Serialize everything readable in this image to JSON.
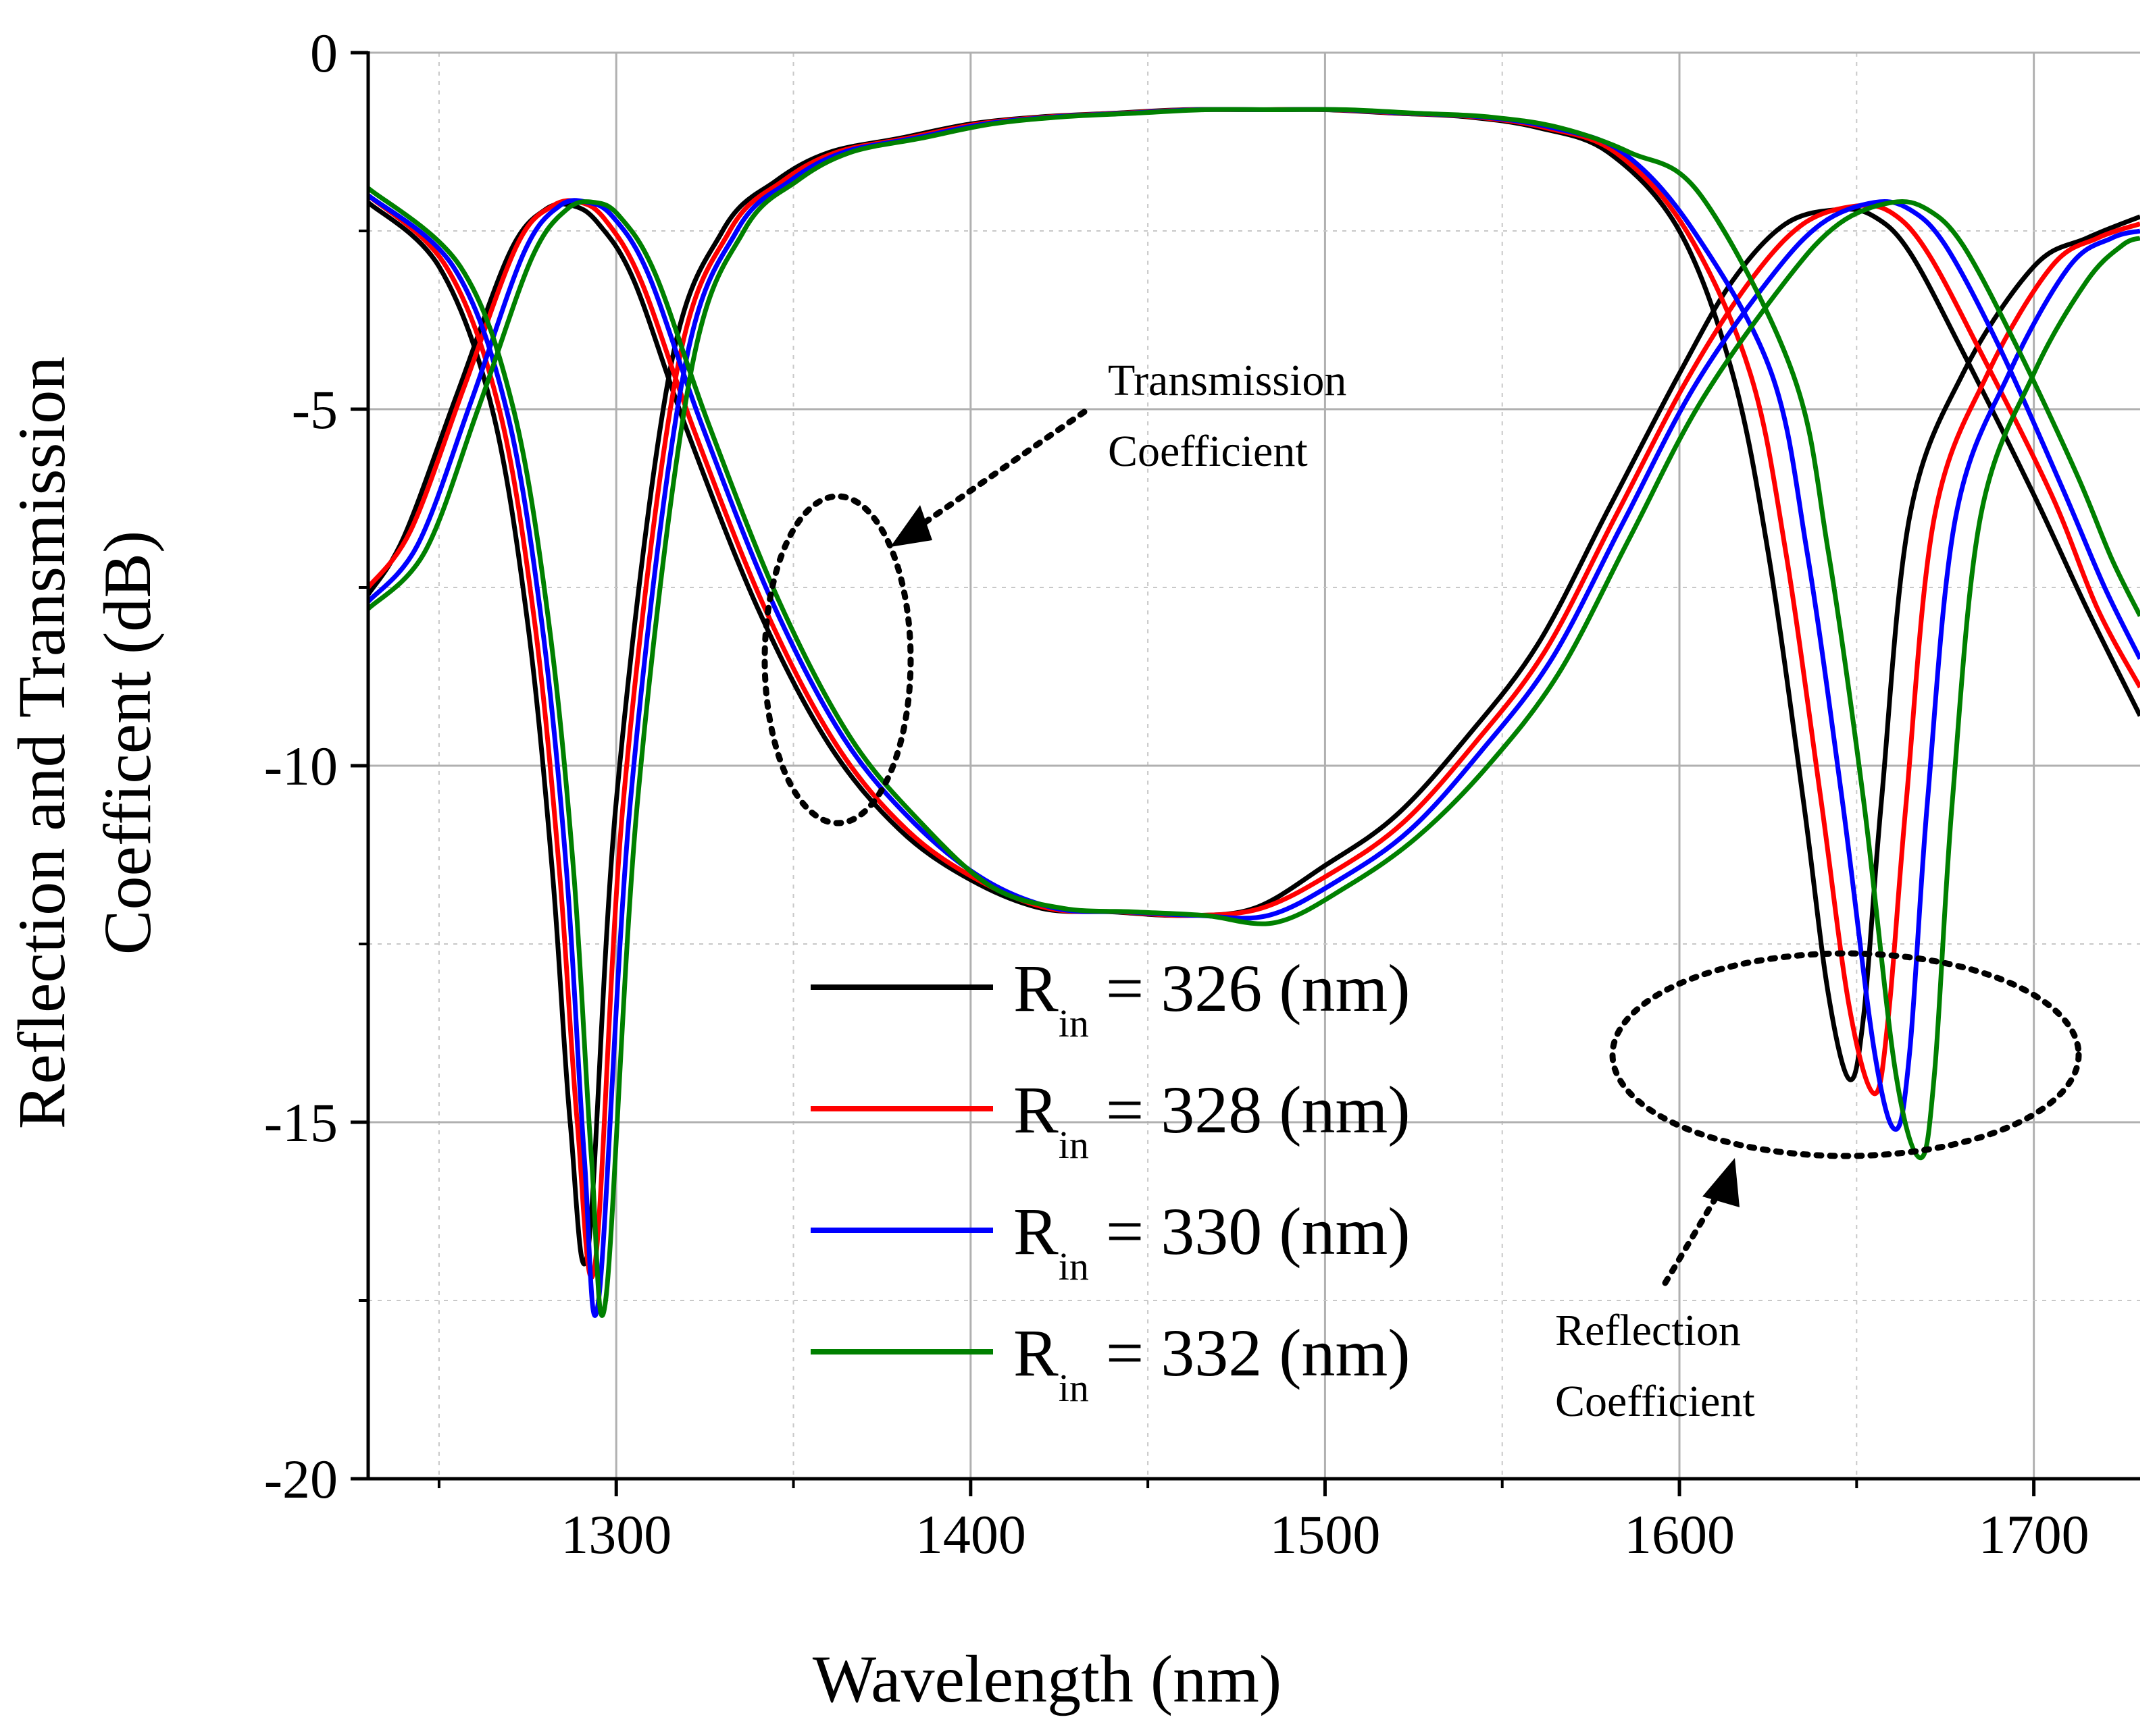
{
  "chart_data": {
    "type": "line",
    "xlabel": "Wavelength (nm)",
    "ylabel_line1": "Reflection and Transmission",
    "ylabel_line2": "Coefficent (dB)",
    "xlim": [
      1230,
      1730
    ],
    "ylim": [
      -20,
      0
    ],
    "xticks": [
      1300,
      1400,
      1500,
      1600,
      1700
    ],
    "xtick_labels": [
      "1300",
      "1400",
      "1500",
      "1600",
      "1700"
    ],
    "xminor": [
      1250,
      1350,
      1450,
      1550,
      1650
    ],
    "yticks": [
      0,
      -5,
      -10,
      -15,
      -20
    ],
    "ytick_labels": [
      "0",
      "-5",
      "-10",
      "-15",
      "-20"
    ],
    "yminor": [
      -2.5,
      -7.5,
      -12.5,
      -17.5
    ],
    "grid": true,
    "legend_placement": "bottom-center",
    "series": [
      {
        "name": "R_in = 326 (nm)",
        "legend_main": "R",
        "legend_sub": "in",
        "legend_rest": " = 326 (nm)",
        "color": "#000000",
        "reflection": {
          "x": [
            1230,
            1250,
            1265,
            1275,
            1282,
            1287,
            1292,
            1300,
            1315,
            1330,
            1345,
            1360,
            1380,
            1400,
            1420,
            1440,
            1460,
            1480,
            1500,
            1520,
            1540,
            1560,
            1580,
            1600,
            1615,
            1625,
            1635,
            1642,
            1648,
            1652,
            1657,
            1665,
            1680,
            1700,
            1715,
            1730
          ],
          "y": [
            -2.1,
            -3.0,
            -5.0,
            -8.0,
            -11.5,
            -15.0,
            -16.8,
            -10.5,
            -4.5,
            -2.5,
            -1.8,
            -1.4,
            -1.2,
            -1.0,
            -0.9,
            -0.85,
            -0.8,
            -0.8,
            -0.8,
            -0.85,
            -0.9,
            -1.05,
            -1.4,
            -2.5,
            -4.5,
            -7.0,
            -10.5,
            -13.2,
            -14.4,
            -13.5,
            -10.5,
            -6.5,
            -4.5,
            -3.0,
            -2.6,
            -2.3
          ]
        },
        "transmission": {
          "x": [
            1230,
            1240,
            1255,
            1270,
            1280,
            1288,
            1295,
            1305,
            1320,
            1340,
            1360,
            1380,
            1400,
            1420,
            1440,
            1460,
            1480,
            1500,
            1520,
            1540,
            1560,
            1580,
            1600,
            1615,
            1630,
            1645,
            1655,
            1665,
            1680,
            1700,
            1715,
            1730
          ],
          "y": [
            -7.6,
            -6.8,
            -4.8,
            -2.8,
            -2.2,
            -2.15,
            -2.4,
            -3.2,
            -5.3,
            -7.8,
            -9.7,
            -10.9,
            -11.6,
            -12.0,
            -12.05,
            -12.1,
            -12.0,
            -11.4,
            -10.7,
            -9.6,
            -8.3,
            -6.4,
            -4.5,
            -3.2,
            -2.4,
            -2.2,
            -2.3,
            -2.8,
            -4.2,
            -6.2,
            -7.8,
            -9.3
          ]
        }
      },
      {
        "name": "R_in = 328 (nm)",
        "legend_main": "R",
        "legend_sub": "in",
        "legend_rest": " = 328 (nm)",
        "color": "#ff0000",
        "reflection": {
          "x": [
            1230,
            1252,
            1267,
            1277,
            1284,
            1289,
            1294,
            1302,
            1317,
            1332,
            1347,
            1362,
            1382,
            1402,
            1422,
            1442,
            1462,
            1482,
            1502,
            1522,
            1542,
            1562,
            1582,
            1602,
            1620,
            1630,
            1640,
            1648,
            1655,
            1659,
            1664,
            1672,
            1687,
            1705,
            1718,
            1730
          ],
          "y": [
            -2.0,
            -3.0,
            -5.0,
            -8.0,
            -11.5,
            -15.0,
            -17.0,
            -10.5,
            -4.5,
            -2.5,
            -1.8,
            -1.4,
            -1.2,
            -1.0,
            -0.9,
            -0.85,
            -0.8,
            -0.8,
            -0.8,
            -0.85,
            -0.9,
            -1.05,
            -1.4,
            -2.5,
            -4.5,
            -7.0,
            -10.5,
            -13.4,
            -14.6,
            -13.5,
            -10.5,
            -6.5,
            -4.5,
            -3.0,
            -2.6,
            -2.4
          ]
        },
        "transmission": {
          "x": [
            1230,
            1242,
            1257,
            1272,
            1282,
            1290,
            1297,
            1307,
            1322,
            1342,
            1362,
            1382,
            1402,
            1422,
            1442,
            1462,
            1482,
            1502,
            1522,
            1542,
            1562,
            1582,
            1602,
            1620,
            1635,
            1650,
            1660,
            1670,
            1685,
            1705,
            1718,
            1730
          ],
          "y": [
            -7.5,
            -6.7,
            -4.7,
            -2.7,
            -2.15,
            -2.1,
            -2.35,
            -3.2,
            -5.3,
            -7.8,
            -9.7,
            -10.9,
            -11.6,
            -12.0,
            -12.05,
            -12.1,
            -12.0,
            -11.5,
            -10.8,
            -9.7,
            -8.4,
            -6.5,
            -4.6,
            -3.2,
            -2.4,
            -2.15,
            -2.25,
            -2.8,
            -4.2,
            -6.2,
            -7.8,
            -8.9
          ]
        }
      },
      {
        "name": "R_in = 330 (nm)",
        "legend_main": "R",
        "legend_sub": "in",
        "legend_rest": " = 330 (nm)",
        "color": "#0000ff",
        "reflection": {
          "x": [
            1230,
            1254,
            1269,
            1279,
            1286,
            1291,
            1295,
            1304,
            1319,
            1334,
            1349,
            1364,
            1384,
            1404,
            1424,
            1444,
            1464,
            1484,
            1504,
            1524,
            1544,
            1564,
            1584,
            1604,
            1626,
            1636,
            1646,
            1655,
            1661,
            1665,
            1670,
            1678,
            1693,
            1710,
            1722,
            1730
          ],
          "y": [
            -2.0,
            -3.0,
            -5.0,
            -8.0,
            -11.5,
            -15.5,
            -17.5,
            -10.5,
            -4.5,
            -2.5,
            -1.8,
            -1.4,
            -1.2,
            -1.0,
            -0.9,
            -0.85,
            -0.8,
            -0.8,
            -0.8,
            -0.85,
            -0.9,
            -1.05,
            -1.4,
            -2.5,
            -4.5,
            -7.0,
            -10.5,
            -14.0,
            -15.1,
            -14.0,
            -10.5,
            -6.5,
            -4.5,
            -3.0,
            -2.6,
            -2.5
          ]
        },
        "transmission": {
          "x": [
            1230,
            1244,
            1259,
            1274,
            1284,
            1292,
            1299,
            1309,
            1324,
            1344,
            1364,
            1384,
            1404,
            1424,
            1444,
            1464,
            1484,
            1504,
            1524,
            1544,
            1564,
            1584,
            1604,
            1625,
            1640,
            1655,
            1665,
            1675,
            1690,
            1708,
            1720,
            1730
          ],
          "y": [
            -7.7,
            -6.9,
            -4.9,
            -2.8,
            -2.15,
            -2.1,
            -2.3,
            -3.1,
            -5.2,
            -7.7,
            -9.6,
            -10.8,
            -11.6,
            -12.0,
            -12.05,
            -12.1,
            -12.1,
            -11.6,
            -10.9,
            -9.8,
            -8.5,
            -6.6,
            -4.7,
            -3.2,
            -2.4,
            -2.1,
            -2.2,
            -2.7,
            -4.1,
            -6.1,
            -7.5,
            -8.5
          ]
        }
      },
      {
        "name": "R_in = 332 (nm)",
        "legend_main": "R",
        "legend_sub": "in",
        "legend_rest": " = 332 (nm)",
        "color": "#008000",
        "reflection": {
          "x": [
            1230,
            1256,
            1271,
            1281,
            1288,
            1293,
            1297,
            1306,
            1321,
            1336,
            1351,
            1366,
            1386,
            1406,
            1426,
            1446,
            1466,
            1486,
            1506,
            1526,
            1546,
            1566,
            1586,
            1606,
            1632,
            1642,
            1652,
            1661,
            1668,
            1672,
            1677,
            1685,
            1700,
            1715,
            1725,
            1730
          ],
          "y": [
            -1.9,
            -3.0,
            -5.0,
            -8.0,
            -11.5,
            -15.5,
            -17.5,
            -10.5,
            -4.5,
            -2.5,
            -1.8,
            -1.4,
            -1.2,
            -1.0,
            -0.9,
            -0.85,
            -0.8,
            -0.8,
            -0.8,
            -0.85,
            -0.9,
            -1.05,
            -1.4,
            -2.0,
            -4.5,
            -7.0,
            -10.5,
            -14.3,
            -15.5,
            -14.3,
            -10.5,
            -6.5,
            -4.5,
            -3.2,
            -2.7,
            -2.6
          ]
        },
        "transmission": {
          "x": [
            1230,
            1246,
            1261,
            1276,
            1286,
            1294,
            1301,
            1311,
            1326,
            1346,
            1366,
            1386,
            1406,
            1426,
            1446,
            1466,
            1486,
            1506,
            1526,
            1546,
            1566,
            1586,
            1606,
            1630,
            1645,
            1660,
            1670,
            1680,
            1695,
            1712,
            1722,
            1730
          ],
          "y": [
            -7.8,
            -7.0,
            -5.0,
            -2.9,
            -2.2,
            -2.1,
            -2.3,
            -3.1,
            -5.2,
            -7.7,
            -9.6,
            -10.8,
            -11.7,
            -12.0,
            -12.05,
            -12.1,
            -12.2,
            -11.7,
            -11.0,
            -10.0,
            -8.7,
            -6.8,
            -4.9,
            -3.2,
            -2.4,
            -2.1,
            -2.2,
            -2.7,
            -4.1,
            -5.9,
            -7.1,
            -7.9
          ]
        }
      }
    ],
    "annotations": [
      {
        "id": "transmission",
        "lines": [
          "Transmission",
          "Coefficient"
        ]
      },
      {
        "id": "reflection",
        "lines": [
          "Reflection",
          "Coefficient"
        ]
      }
    ]
  }
}
